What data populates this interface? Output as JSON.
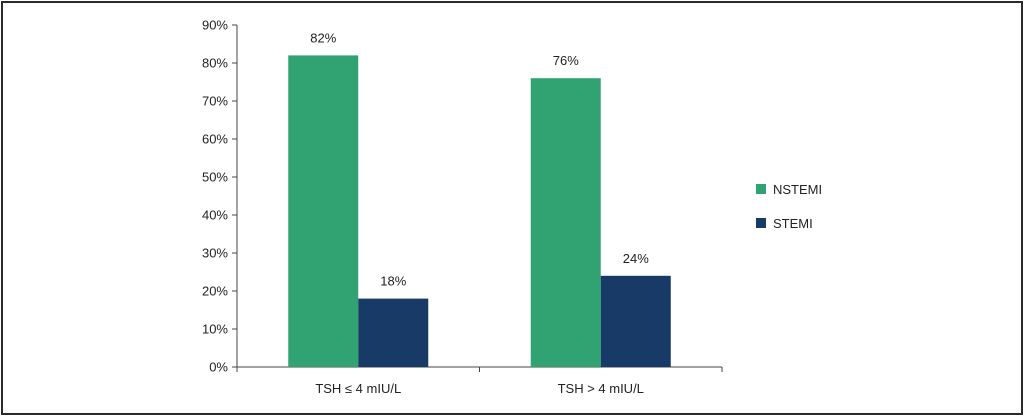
{
  "chart_data": {
    "type": "bar",
    "categories": [
      "TSH ≤ 4 mIU/L",
      "TSH > 4 mIU/L"
    ],
    "series": [
      {
        "name": "NSTEMI",
        "color": "#31a373",
        "values": [
          82,
          76
        ],
        "labels": [
          "82%",
          "76%"
        ]
      },
      {
        "name": "STEMI",
        "color": "#173a66",
        "values": [
          18,
          24
        ],
        "labels": [
          "18%",
          "24%"
        ]
      }
    ],
    "ylim": [
      0,
      90
    ],
    "yticks": [
      0,
      10,
      20,
      30,
      40,
      50,
      60,
      70,
      80,
      90
    ],
    "ytick_labels": [
      "0%",
      "10%",
      "20%",
      "30%",
      "40%",
      "50%",
      "60%",
      "70%",
      "80%",
      "90%"
    ],
    "grid": false,
    "legend_position": "right"
  }
}
